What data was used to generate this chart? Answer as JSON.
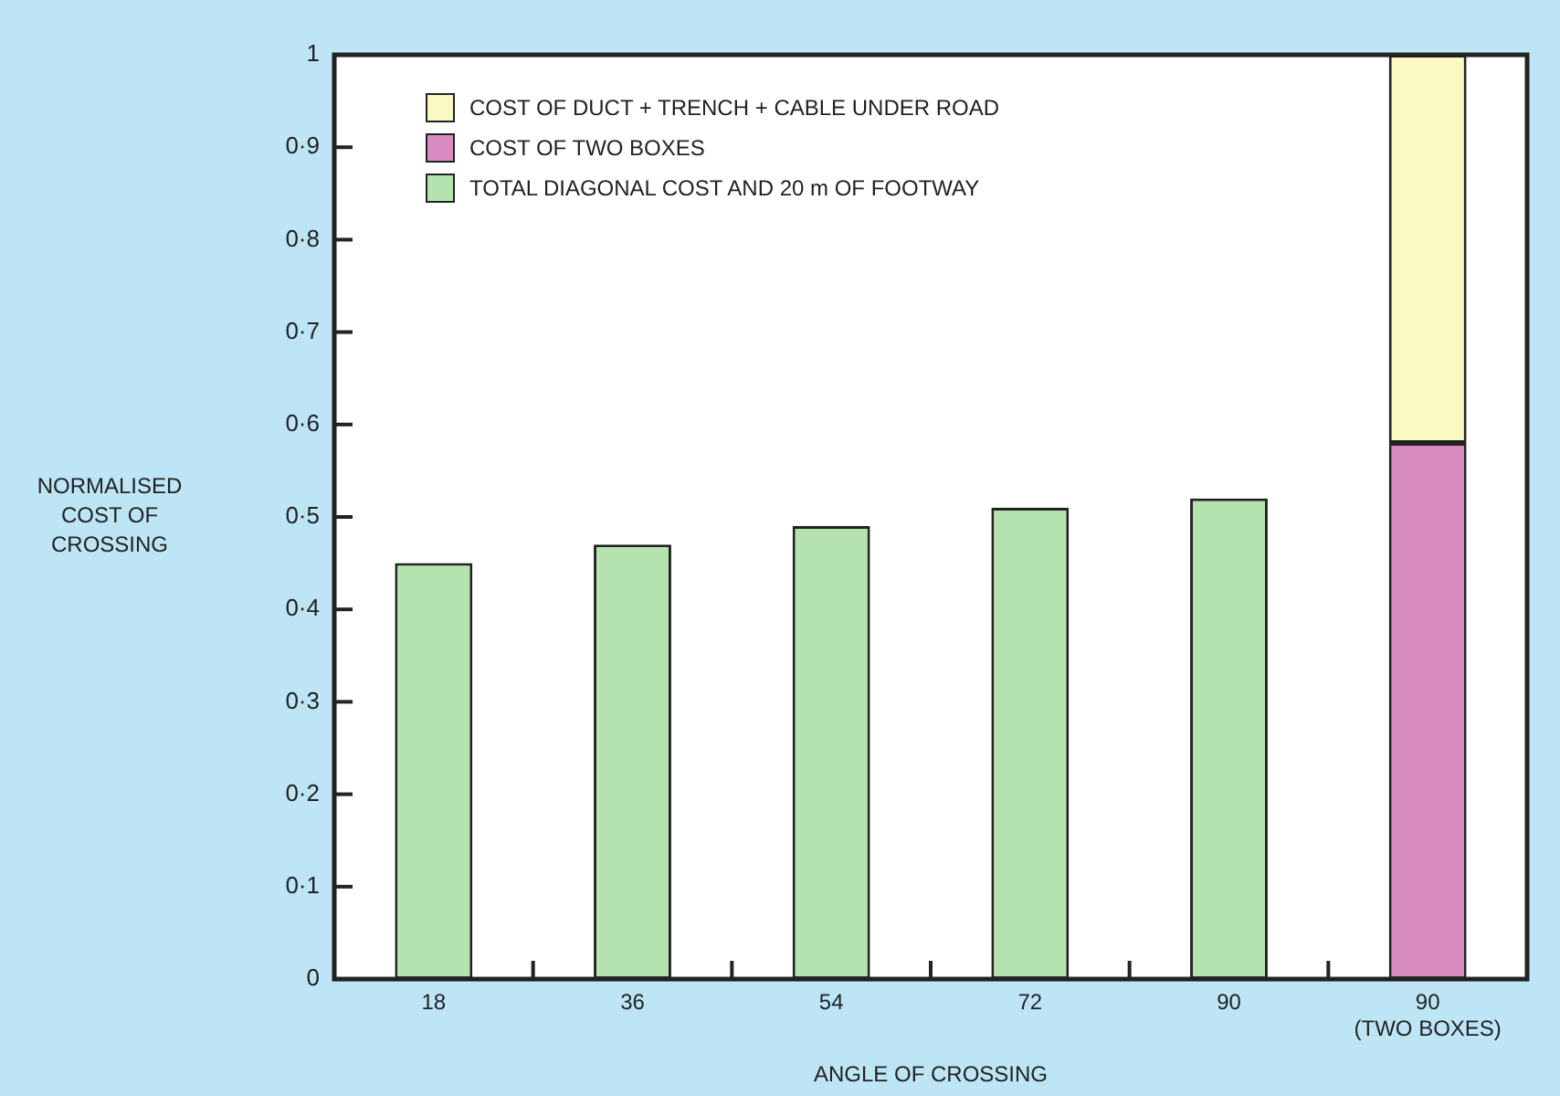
{
  "chart_data": {
    "type": "bar",
    "stacked": true,
    "xlabel": "ANGLE OF CROSSING",
    "ylabel": "NORMALISED\nCOST OF\nCROSSING",
    "categories": [
      "18",
      "36",
      "54",
      "72",
      "90",
      "90\n(TWO BOXES)"
    ],
    "series": [
      {
        "name": "TOTAL DIAGONAL COST AND 20 m OF FOOTWAY",
        "color": "#b5e3b0",
        "values": [
          0.45,
          0.47,
          0.49,
          0.51,
          0.52,
          null
        ]
      },
      {
        "name": "COST OF TWO BOXES",
        "color": "#d98cc0",
        "values": [
          null,
          null,
          null,
          null,
          null,
          0.58
        ]
      },
      {
        "name": "COST OF DUCT + TRENCH + CABLE UNDER ROAD",
        "color": "#fbf8c4",
        "values": [
          null,
          null,
          null,
          null,
          null,
          0.42
        ]
      }
    ],
    "ylim": [
      0,
      1
    ],
    "yticks": [
      {
        "value": 0,
        "label": "0"
      },
      {
        "value": 0.1,
        "label": "0·1"
      },
      {
        "value": 0.2,
        "label": "0·2"
      },
      {
        "value": 0.3,
        "label": "0·3"
      },
      {
        "value": 0.4,
        "label": "0·4"
      },
      {
        "value": 0.5,
        "label": "0·5"
      },
      {
        "value": 0.6,
        "label": "0·6"
      },
      {
        "value": 0.7,
        "label": "0·7"
      },
      {
        "value": 0.8,
        "label": "0·8"
      },
      {
        "value": 0.9,
        "label": "0·9"
      },
      {
        "value": 1,
        "label": "1"
      }
    ],
    "legend": "top left"
  }
}
